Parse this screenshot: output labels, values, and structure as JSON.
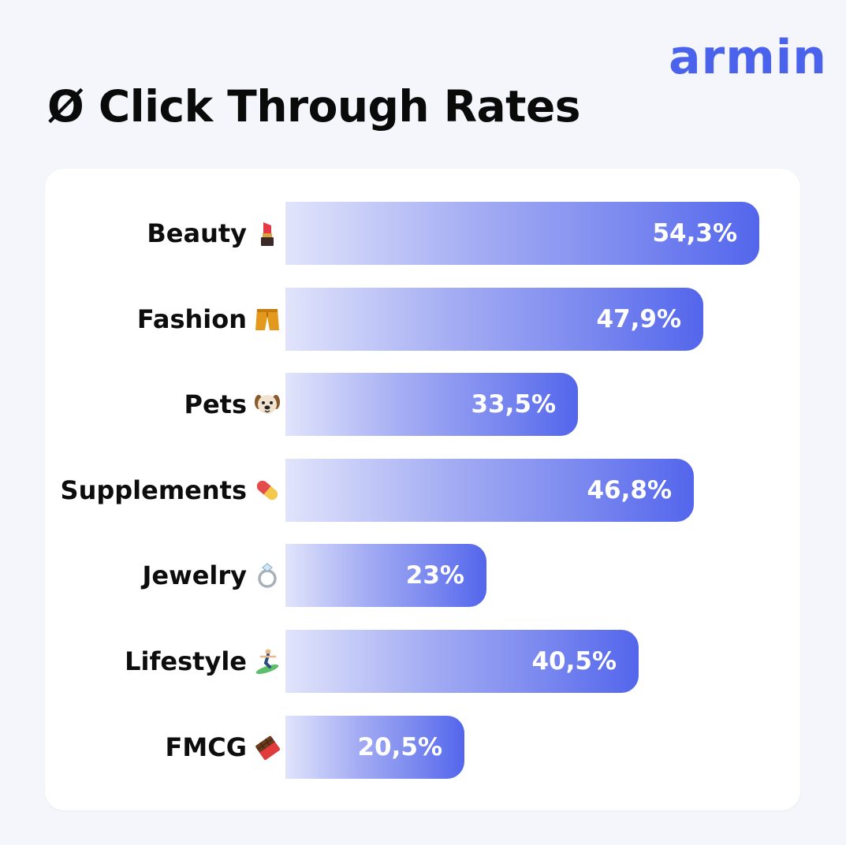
{
  "brand": {
    "name": "armin",
    "color": "#4a62ec"
  },
  "title": "Ø Click Through Rates",
  "chart_data": {
    "type": "bar",
    "orientation": "horizontal",
    "title": "Ø Click Through Rates",
    "categories": [
      "Beauty",
      "Fashion",
      "Pets",
      "Supplements",
      "Jewelry",
      "Lifestyle",
      "FMCG"
    ],
    "values": [
      54.3,
      47.9,
      33.5,
      46.8,
      23,
      40.5,
      20.5
    ],
    "unit": "%",
    "xlim": [
      0,
      56
    ],
    "grid": false,
    "bar_gradient": [
      "#e1e4fb",
      "#5366ec"
    ],
    "items": [
      {
        "label": "Beauty",
        "value_label": "54,3%",
        "icon": "lipstick-icon"
      },
      {
        "label": "Fashion",
        "value_label": "47,9%",
        "icon": "shorts-icon"
      },
      {
        "label": "Pets",
        "value_label": "33,5%",
        "icon": "dog-face-icon"
      },
      {
        "label": "Supplements",
        "value_label": "46,8%",
        "icon": "pill-icon"
      },
      {
        "label": "Jewelry",
        "value_label": "23%",
        "icon": "ring-icon"
      },
      {
        "label": "Lifestyle",
        "value_label": "40,5%",
        "icon": "surfer-icon"
      },
      {
        "label": "FMCG",
        "value_label": "20,5%",
        "icon": "chocolate-bar-icon"
      }
    ]
  }
}
